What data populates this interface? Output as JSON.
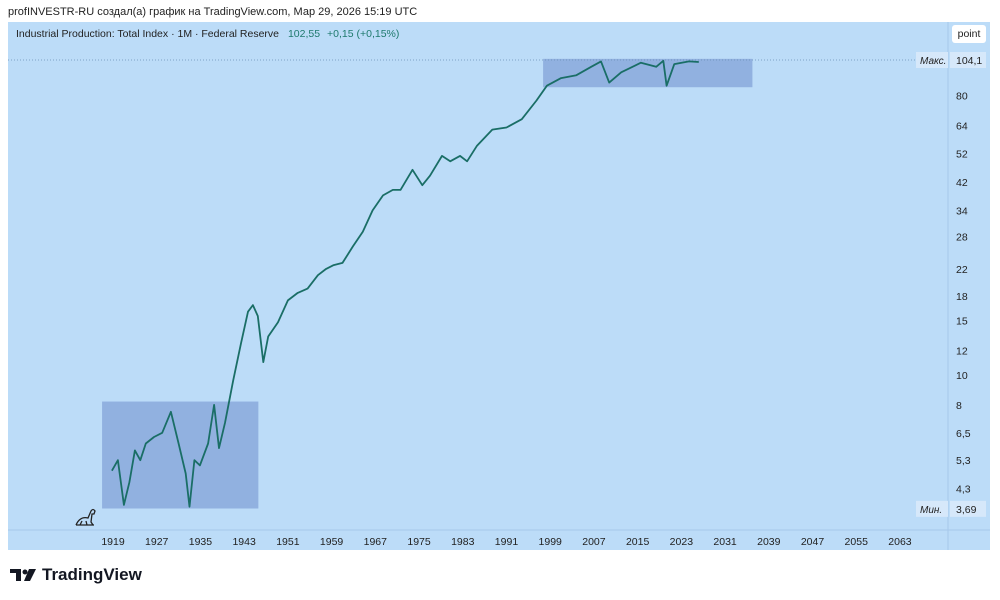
{
  "credit": "profINVESTR-RU создал(а) график на TradingView.com, Мар 29, 2026 15:19 UTC",
  "legend": {
    "title": "Industrial Production: Total Index · 1M · Federal Reserve",
    "value": "102,55",
    "change": "+0,15 (+0,15%)"
  },
  "scale_button": "point",
  "max_label": "Макс.",
  "max_value": "104,1",
  "min_label": "Мин.",
  "min_value": "3,69",
  "logo_text": "TradingView",
  "colors": {
    "background": "#bcdcf8",
    "line": "#1a6e66",
    "box": "#8aa9dc"
  },
  "chart_data": {
    "type": "line",
    "title": "Industrial Production: Total Index · 1M · Federal Reserve",
    "yscale": "log",
    "ylim": [
      3.69,
      104.1
    ],
    "xlim": [
      1900,
      2071
    ],
    "y_ticks": [
      "80",
      "64",
      "52",
      "42",
      "34",
      "28",
      "22",
      "18",
      "15",
      "12",
      "10",
      "8",
      "6,5",
      "5,3",
      "4,3"
    ],
    "y_tick_values": [
      80,
      64,
      52,
      42,
      34,
      28,
      22,
      18,
      15,
      12,
      10,
      8,
      6.5,
      5.3,
      4.3
    ],
    "x_ticks": [
      "1919",
      "1927",
      "1935",
      "1943",
      "1951",
      "1959",
      "1967",
      "1975",
      "1983",
      "1991",
      "1999",
      "2007",
      "2015",
      "2023",
      "2031",
      "2039",
      "2047",
      "2055",
      "2063"
    ],
    "series": [
      {
        "name": "Industrial Production",
        "points": [
          [
            1918.8,
            4.9
          ],
          [
            1919.9,
            5.3
          ],
          [
            1921,
            3.8
          ],
          [
            1922,
            4.5
          ],
          [
            1923,
            5.7
          ],
          [
            1924,
            5.3
          ],
          [
            1925,
            6.0
          ],
          [
            1926.5,
            6.3
          ],
          [
            1928,
            6.5
          ],
          [
            1929.6,
            7.6
          ],
          [
            1931,
            6.0
          ],
          [
            1932.3,
            4.8
          ],
          [
            1933,
            3.75
          ],
          [
            1933.9,
            5.3
          ],
          [
            1934.9,
            5.1
          ],
          [
            1936.4,
            6.0
          ],
          [
            1937.5,
            8.0
          ],
          [
            1938.4,
            5.8
          ],
          [
            1939.5,
            7.0
          ],
          [
            1941,
            9.6
          ],
          [
            1942.4,
            12.6
          ],
          [
            1943.7,
            16
          ],
          [
            1944.6,
            16.8
          ],
          [
            1945.5,
            15.5
          ],
          [
            1946.5,
            11
          ],
          [
            1947.4,
            13.3
          ],
          [
            1949.2,
            14.8
          ],
          [
            1951,
            17.4
          ],
          [
            1952.8,
            18.4
          ],
          [
            1954.6,
            19
          ],
          [
            1956.5,
            21
          ],
          [
            1958,
            22
          ],
          [
            1959.3,
            22.6
          ],
          [
            1961,
            23
          ],
          [
            1962.9,
            26
          ],
          [
            1964.7,
            29
          ],
          [
            1966.5,
            34
          ],
          [
            1968.4,
            38
          ],
          [
            1970.2,
            39.6
          ],
          [
            1971.6,
            39.6
          ],
          [
            1973.8,
            46
          ],
          [
            1975.6,
            41
          ],
          [
            1977,
            44
          ],
          [
            1979.2,
            51
          ],
          [
            1980.7,
            49
          ],
          [
            1982.5,
            51
          ],
          [
            1983.8,
            49
          ],
          [
            1985.6,
            55
          ],
          [
            1988.4,
            62
          ],
          [
            1991,
            63
          ],
          [
            1993.8,
            67
          ],
          [
            1996.5,
            77
          ],
          [
            1998.4,
            86
          ],
          [
            2001,
            91
          ],
          [
            2003.8,
            93
          ],
          [
            2006.5,
            99
          ],
          [
            2008.3,
            103
          ],
          [
            2009.8,
            88
          ],
          [
            2012,
            95
          ],
          [
            2015.6,
            102
          ],
          [
            2018.4,
            99
          ],
          [
            2019.7,
            103.5
          ],
          [
            2020.3,
            86
          ],
          [
            2021.7,
            101
          ],
          [
            2024.4,
            103
          ],
          [
            2026.2,
            102.55
          ]
        ]
      }
    ],
    "boxes": [
      {
        "x": [
          1917,
          1945.6
        ],
        "y": [
          3.7,
          8.2
        ]
      },
      {
        "x": [
          1997.7,
          2036
        ],
        "y": [
          85,
          105
        ]
      }
    ]
  }
}
